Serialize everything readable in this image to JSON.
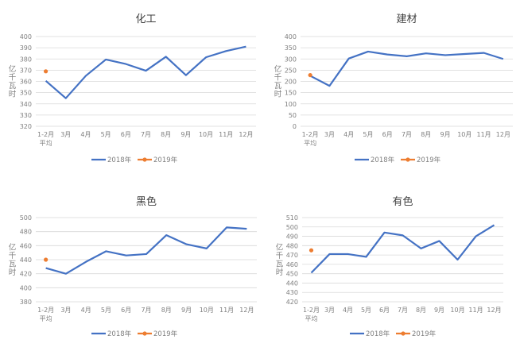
{
  "chart_data": [
    {
      "type": "line",
      "title": "化工",
      "ylabel": "亿千瓦时",
      "xlabel": "",
      "categories": [
        "1-2月\n平均",
        "3月",
        "4月",
        "5月",
        "6月",
        "7月",
        "8月",
        "9月",
        "10月",
        "11月",
        "12月"
      ],
      "ylim": [
        320,
        400
      ],
      "ystep": 10,
      "grid": true,
      "legend": "bottom",
      "series": [
        {
          "name": "2018年",
          "color": "#4472C4",
          "values": [
            360.5,
            345,
            365,
            379.5,
            375.5,
            369.5,
            382,
            365.5,
            381.5,
            387,
            391
          ]
        },
        {
          "name": "2019年",
          "color": "#ED7D31",
          "values": [
            369,
            null,
            null,
            null,
            null,
            null,
            null,
            null,
            null,
            null,
            null
          ]
        }
      ]
    },
    {
      "type": "line",
      "title": "建材",
      "ylabel": "亿千瓦时",
      "xlabel": "",
      "categories": [
        "1-2月\n平均",
        "3月",
        "4月",
        "5月",
        "6月",
        "7月",
        "8月",
        "9月",
        "10月",
        "11月",
        "12月"
      ],
      "ylim": [
        0,
        400
      ],
      "ystep": 50,
      "grid": true,
      "legend": "bottom",
      "series": [
        {
          "name": "2018年",
          "color": "#4472C4",
          "values": [
            225,
            180,
            302,
            333,
            320,
            312,
            325,
            317,
            322,
            327,
            300
          ]
        },
        {
          "name": "2019年",
          "color": "#ED7D31",
          "values": [
            228,
            null,
            null,
            null,
            null,
            null,
            null,
            null,
            null,
            null,
            null
          ]
        }
      ]
    },
    {
      "type": "line",
      "title": "黑色",
      "ylabel": "亿千瓦时",
      "xlabel": "",
      "categories": [
        "1-2月\n平均",
        "3月",
        "4月",
        "5月",
        "6月",
        "7月",
        "8月",
        "9月",
        "10月",
        "11月",
        "12月"
      ],
      "ylim": [
        380,
        500
      ],
      "ystep": 20,
      "grid": true,
      "legend": "bottom",
      "series": [
        {
          "name": "2018年",
          "color": "#4472C4",
          "values": [
            428,
            420,
            437,
            452,
            446,
            448,
            475,
            462,
            456,
            486,
            484
          ]
        },
        {
          "name": "2019年",
          "color": "#ED7D31",
          "values": [
            440,
            null,
            null,
            null,
            null,
            null,
            null,
            null,
            null,
            null,
            null
          ]
        }
      ]
    },
    {
      "type": "line",
      "title": "有色",
      "ylabel": "亿千瓦时",
      "xlabel": "",
      "categories": [
        "1-2月\n平均",
        "3月",
        "4月",
        "5月",
        "6月",
        "7月",
        "8月",
        "9月",
        "10月",
        "11月",
        "12月"
      ],
      "ylim": [
        420,
        510
      ],
      "ystep": 10,
      "grid": true,
      "legend": "bottom",
      "series": [
        {
          "name": "2018年",
          "color": "#4472C4",
          "values": [
            451,
            471,
            471,
            468,
            494,
            491,
            477,
            485,
            465,
            490,
            502
          ]
        },
        {
          "name": "2019年",
          "color": "#ED7D31",
          "values": [
            475,
            null,
            null,
            null,
            null,
            null,
            null,
            null,
            null,
            null,
            null
          ]
        }
      ]
    }
  ]
}
